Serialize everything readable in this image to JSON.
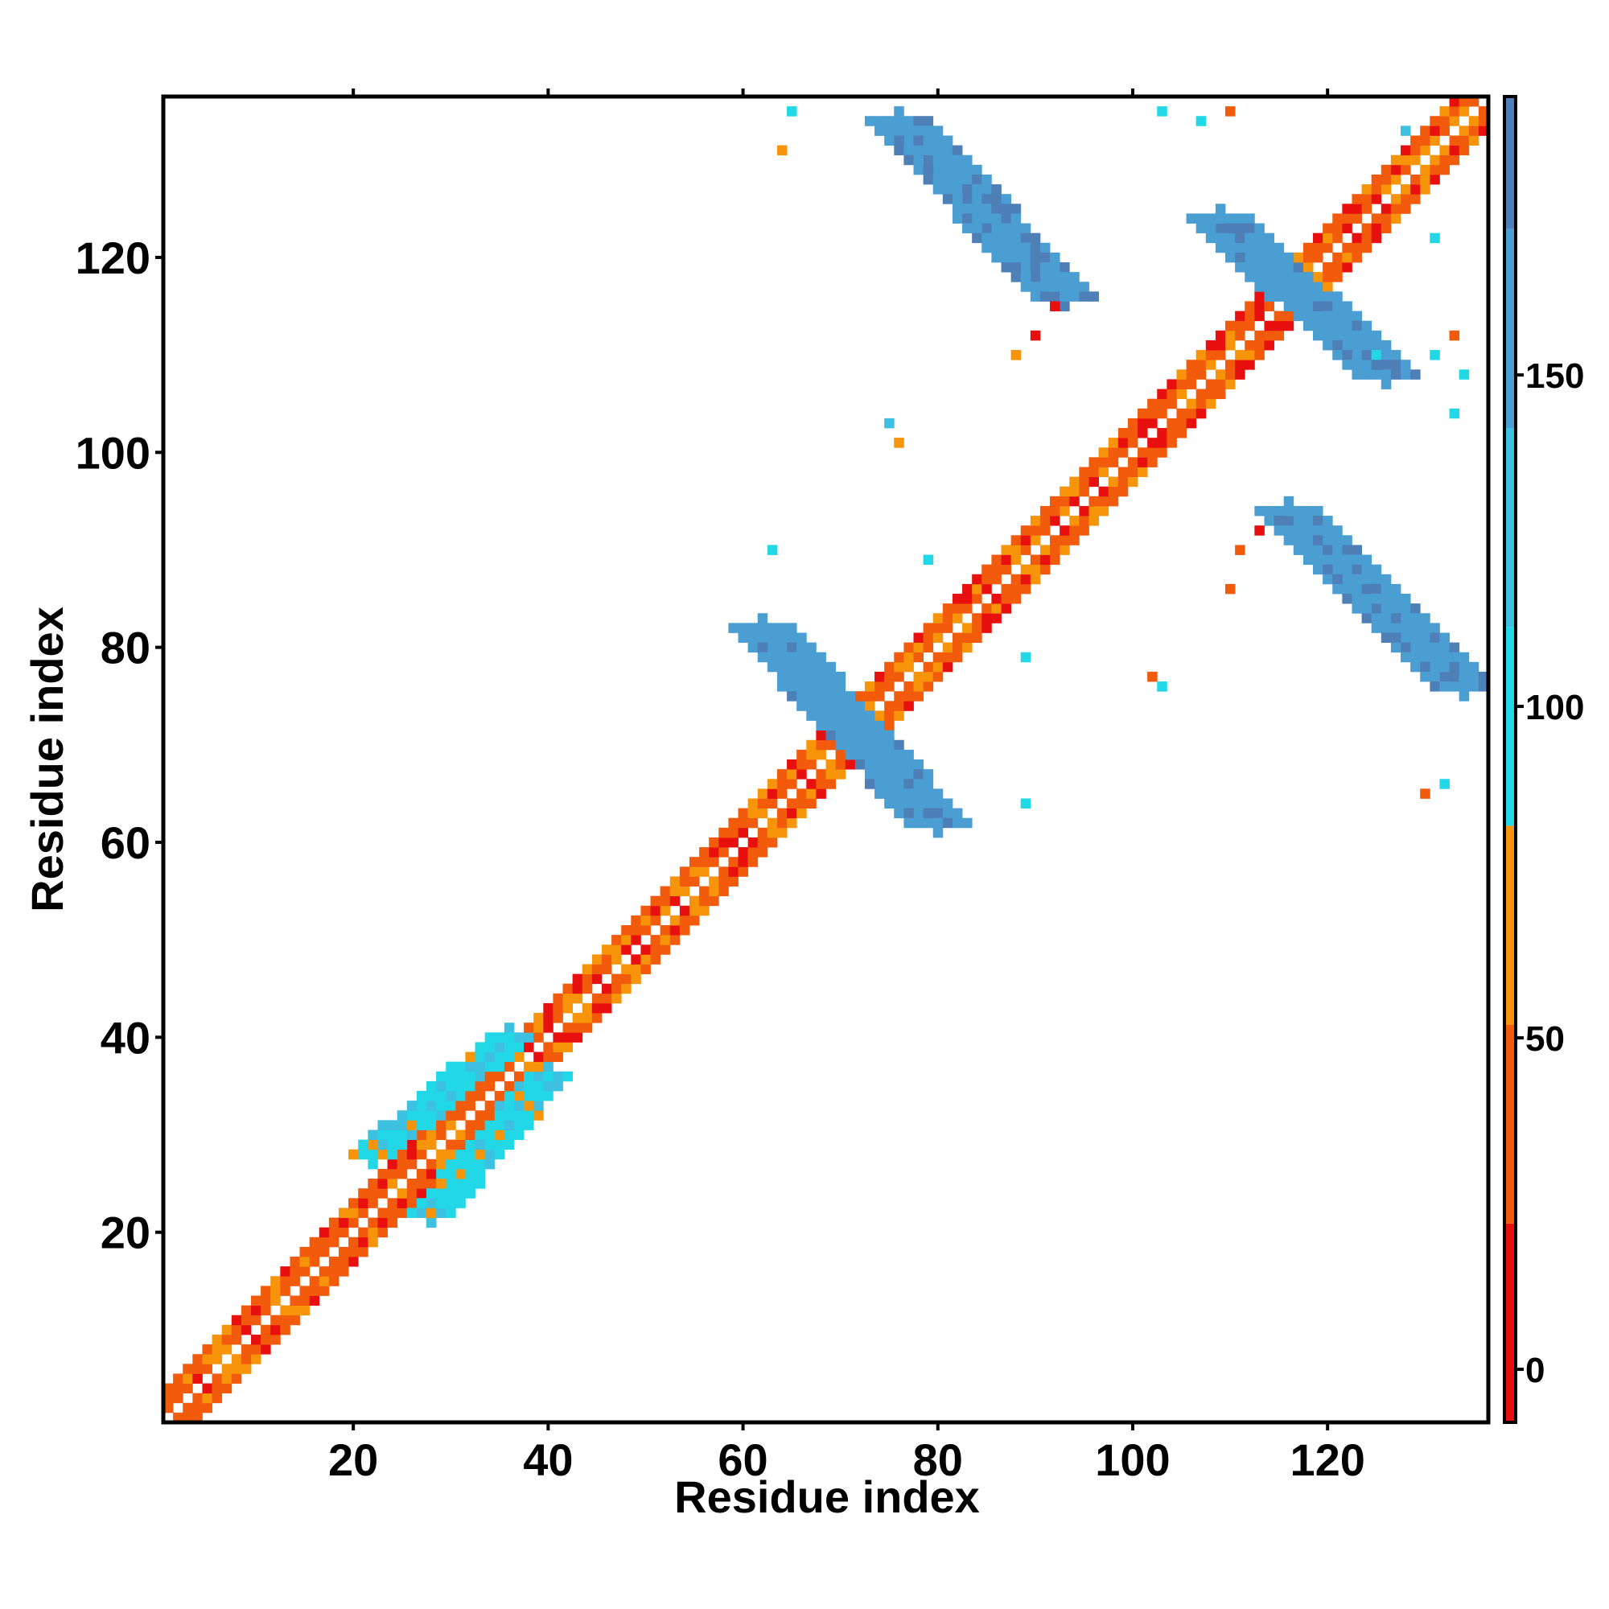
{
  "chart_data": {
    "type": "heatmap",
    "title": "",
    "xlabel": "Residue index",
    "ylabel": "Residue index",
    "xlim": [
      1,
      136
    ],
    "ylim": [
      1,
      136
    ],
    "x_ticks": [
      20,
      40,
      60,
      80,
      100,
      120
    ],
    "y_ticks": [
      20,
      40,
      60,
      80,
      100,
      120
    ],
    "grid": false,
    "colorbar": {
      "ticks": [
        0,
        50,
        100,
        150
      ],
      "range": [
        -8,
        192
      ],
      "bands": [
        {
          "from": -8,
          "to": 22,
          "color": "#e8100e"
        },
        {
          "from": 22,
          "to": 52,
          "color": "#f25a0c"
        },
        {
          "from": 52,
          "to": 82,
          "color": "#f7940a"
        },
        {
          "from": 82,
          "to": 112,
          "color": "#22d8e6"
        },
        {
          "from": 112,
          "to": 142,
          "color": "#3ec0e0"
        },
        {
          "from": 142,
          "to": 172,
          "color": "#4a9ed2"
        },
        {
          "from": 172,
          "to": 192,
          "color": "#4f7fb7"
        }
      ]
    },
    "regions": [
      {
        "name": "diagonal-band",
        "kind": "diagonal",
        "from": [
          1,
          1
        ],
        "to": [
          136,
          136
        ],
        "width": 3,
        "value": 20
      },
      {
        "name": "antiparallel-sheet-1",
        "kind": "anti",
        "from": [
          62,
          82
        ],
        "to": [
          80,
          62
        ],
        "width": 3,
        "value": 160
      },
      {
        "name": "antiparallel-sheet-2",
        "kind": "anti",
        "from": [
          76,
          134
        ],
        "to": [
          93,
          116
        ],
        "width": 3,
        "value": 165
      },
      {
        "name": "antiparallel-sheet-3",
        "kind": "anti",
        "from": [
          109,
          124
        ],
        "to": [
          126,
          108
        ],
        "width": 3,
        "value": 160
      },
      {
        "name": "antiparallel-sheet-4",
        "kind": "anti",
        "from": [
          116,
          94
        ],
        "to": [
          134,
          76
        ],
        "width": 3,
        "value": 165
      },
      {
        "name": "parallel-sheet-1",
        "kind": "parallel",
        "from": [
          22,
          28
        ],
        "to": [
          36,
          40
        ],
        "width": 2,
        "value": 100
      },
      {
        "name": "parallel-sheet-2",
        "kind": "parallel",
        "from": [
          28,
          22
        ],
        "to": [
          40,
          36
        ],
        "width": 2,
        "value": 100
      }
    ],
    "spots": [
      {
        "x": 65,
        "y": 135,
        "value": 100
      },
      {
        "x": 64,
        "y": 131,
        "value": 60
      },
      {
        "x": 103,
        "y": 135,
        "value": 110
      },
      {
        "x": 107,
        "y": 134,
        "value": 110
      },
      {
        "x": 110,
        "y": 135,
        "value": 30
      },
      {
        "x": 75,
        "y": 103,
        "value": 130
      },
      {
        "x": 76,
        "y": 101,
        "value": 70
      },
      {
        "x": 88,
        "y": 110,
        "value": 60
      },
      {
        "x": 90,
        "y": 112,
        "value": 10
      },
      {
        "x": 92,
        "y": 115,
        "value": 20
      },
      {
        "x": 63,
        "y": 90,
        "value": 90
      },
      {
        "x": 79,
        "y": 89,
        "value": 100
      },
      {
        "x": 89,
        "y": 79,
        "value": 100
      },
      {
        "x": 103,
        "y": 76,
        "value": 90
      },
      {
        "x": 102,
        "y": 77,
        "value": 40
      },
      {
        "x": 89,
        "y": 64,
        "value": 100
      },
      {
        "x": 130,
        "y": 65,
        "value": 50
      },
      {
        "x": 132,
        "y": 66,
        "value": 90
      },
      {
        "x": 110,
        "y": 86,
        "value": 50
      },
      {
        "x": 111,
        "y": 90,
        "value": 30
      },
      {
        "x": 113,
        "y": 92,
        "value": 10
      },
      {
        "x": 134,
        "y": 108,
        "value": 100
      },
      {
        "x": 133,
        "y": 112,
        "value": 40
      },
      {
        "x": 131,
        "y": 110,
        "value": 90
      },
      {
        "x": 125,
        "y": 110,
        "value": 110
      },
      {
        "x": 131,
        "y": 122,
        "value": 100
      },
      {
        "x": 128,
        "y": 133,
        "value": 120
      },
      {
        "x": 133,
        "y": 104,
        "value": 110
      }
    ]
  }
}
